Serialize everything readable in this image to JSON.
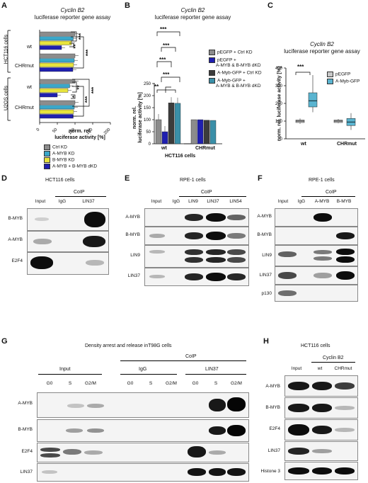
{
  "panels": {
    "A": {
      "letter": "A",
      "title_italic": "Cyclin B2",
      "title_rest": "luciferase reporter gene assay",
      "group_hct": "HCT116 cells",
      "group_u2os": "U2OS cells",
      "rows": [
        "wt",
        "CHRmut",
        "wt",
        "CHRmut"
      ],
      "xlabel1": "norm. rel.",
      "xlabel2": "luciferase activity [%]",
      "xticks": [
        "0",
        "50",
        "100",
        "150",
        "200"
      ],
      "sig": [
        "***",
        "***",
        "**",
        "**",
        "***",
        "***",
        "*"
      ],
      "legend": [
        "Ctrl KD",
        "A-MYB KD",
        "B-MYB KD",
        "A-MYB + B-MYB dKD"
      ],
      "colors": [
        "#8c8c8c",
        "#3aa7c9",
        "#e8e43c",
        "#1f1fb0"
      ]
    },
    "B": {
      "letter": "B",
      "title_italic": "Cyclin B2",
      "title_rest": "luciferase reporter gene assay",
      "ylabel1": "norm. rel.",
      "ylabel2": "luciferase activity [%]",
      "yticks": [
        "0",
        "50",
        "100",
        "150",
        "200",
        "250"
      ],
      "xcats": [
        "wt",
        "CHRmut"
      ],
      "xlabel": "HCT116 cells",
      "sig": [
        "***",
        "***",
        "***",
        "***",
        "**"
      ],
      "legend": [
        "pEGFP + Ctrl KD",
        "pEGFP +",
        "A-MYB & B-MYB dKD",
        "A-Myb-GFP + Ctrl KD",
        "A-Myb-GFP +",
        "A-MYB & B-MYB dKD"
      ],
      "colors": [
        "#8c8c8c",
        "#1f1fb0",
        "#3c3c3c",
        "#3a8fa8"
      ]
    },
    "C": {
      "letter": "C",
      "title_italic": "Cyclin B2",
      "title_rest": "luciferase reporter gene assay",
      "ylabel1": "norm. rel. luciferase activity [%]",
      "yticks": [
        "0",
        "100",
        "200",
        "300",
        "400"
      ],
      "xcats": [
        "wt",
        "CHRmut"
      ],
      "sig": "***",
      "legend": [
        "pEGFP",
        "A-Myb-GFP"
      ],
      "colors": [
        "#c8c8c8",
        "#5ab4d0"
      ]
    },
    "D": {
      "letter": "D",
      "cells": "HCT116 cells",
      "coip": "CoIP",
      "cols": [
        "Input",
        "IgG",
        "LIN37"
      ],
      "rows": [
        "B-MYB",
        "A-MYB",
        "E2F4"
      ]
    },
    "E": {
      "letter": "E",
      "cells": "RPE-1 cells",
      "coip": "CoIP",
      "cols": [
        "Input",
        "IgG",
        "LIN9",
        "LIN37",
        "LIN54"
      ],
      "rows": [
        "A-MYB",
        "B-MYB",
        "LIN9",
        "LIN37"
      ]
    },
    "F": {
      "letter": "F",
      "cells": "RPE-1 cells",
      "coip": "CoIP",
      "cols": [
        "Input",
        "IgG",
        "A-MYB",
        "B-MYB"
      ],
      "rows": [
        "A-MYB",
        "B-MYB",
        "LIN9",
        "LIN37",
        "p130"
      ]
    },
    "G": {
      "letter": "G",
      "title": "Density arrest and release inT98G cells",
      "coip": "CoIP",
      "groups": [
        "Input",
        "IgG",
        "LIN37"
      ],
      "phases": [
        "G0",
        "S",
        "G2/M"
      ],
      "rows": [
        "A-MYB",
        "B-MYB",
        "E2F4",
        "LIN37"
      ]
    },
    "H": {
      "letter": "H",
      "cells": "HCT116 cells",
      "group": "Cyclin B2",
      "cols": [
        "Input",
        "wt",
        "CHRmut"
      ],
      "rows": [
        "A-MYB",
        "B-MYB",
        "E2F4",
        "LIN37",
        "Histone 3"
      ]
    }
  }
}
